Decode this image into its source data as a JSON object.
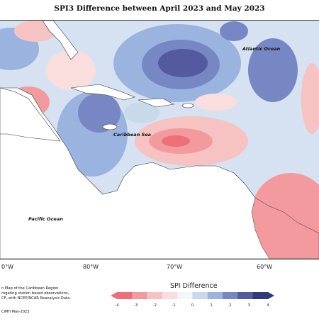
{
  "title": "SPI3 Difference between April 2023 and May 2023",
  "labels": {
    "atlantic": "Atlantic Ocean",
    "caribbean": "Caribbean Sea",
    "pacific": "Pacific Ocean"
  },
  "longitude_ticks": [
    "0°W",
    "80°W",
    "70°W",
    "60°W"
  ],
  "notes": [
    "n Map of the Caribbean Region",
    "regating station based observations,",
    "CF, with NCEP/NCAR Reanalysis Data."
  ],
  "credit": "CIMH May-2023",
  "colorbar": {
    "title": "SPI Difference",
    "ticks": [
      "-4",
      "-3",
      "-2",
      "-1",
      "0",
      "1",
      "2",
      "3",
      "4"
    ],
    "colors": [
      "#ee6f79",
      "#f29a9d",
      "#f6c2c2",
      "#fadede",
      "#f4f6fa",
      "#c9d9ec",
      "#9bb3df",
      "#7787c4",
      "#545a9e",
      "#2f3a7a"
    ]
  }
}
